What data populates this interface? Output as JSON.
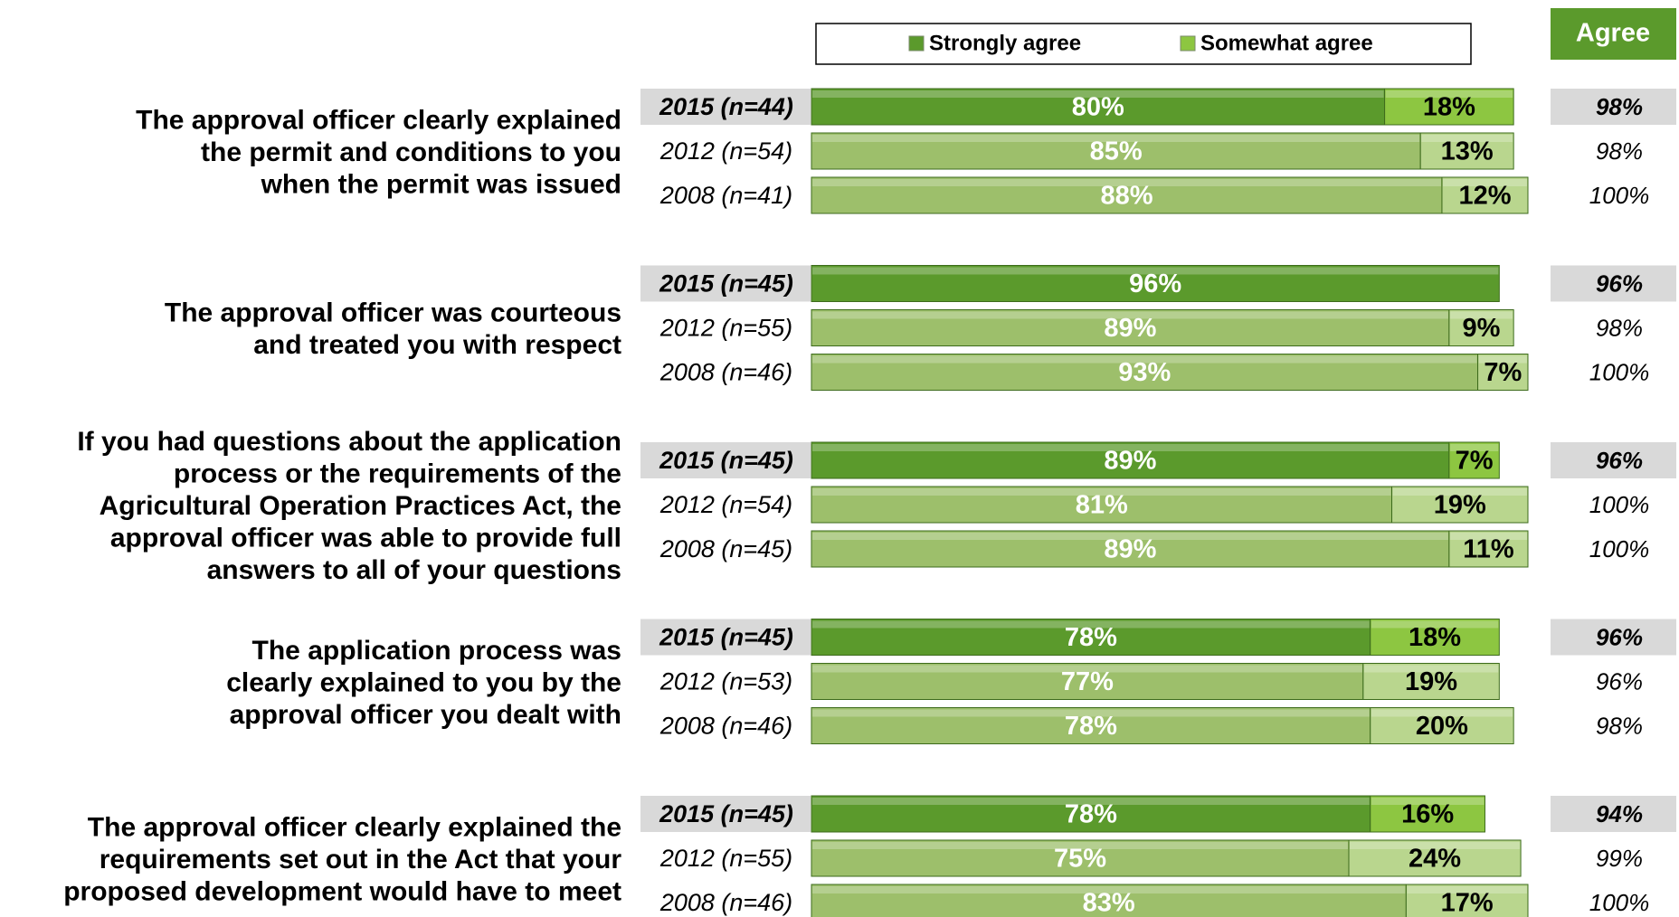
{
  "chart_data": {
    "type": "bar",
    "orientation": "horizontal",
    "stacked": true,
    "xlim": [
      0,
      100
    ],
    "total_header": "Agree",
    "series": [
      {
        "name": "Strongly agree",
        "color": "#5b9a2c",
        "past_color": "#9dbf6b"
      },
      {
        "name": "Somewhat agree",
        "color": "#8dc641",
        "past_color": "#b9d68e"
      }
    ],
    "groups": [
      {
        "label": [
          "The approval officer clearly explained",
          "the permit and conditions to you",
          "when the permit was issued"
        ],
        "categories": [
          "2015 (n=44)",
          "2012 (n=54)",
          "2008 (n=41)"
        ],
        "values": [
          [
            80,
            18
          ],
          [
            85,
            13
          ],
          [
            88,
            12
          ]
        ],
        "value_labels": [
          [
            "80%",
            "18%"
          ],
          [
            "85%",
            "13%"
          ],
          [
            "88%",
            "12%"
          ]
        ],
        "totals": [
          98,
          98,
          100
        ],
        "total_labels": [
          "98%",
          "98%",
          "100%"
        ]
      },
      {
        "label": [
          "The approval officer was courteous",
          "and treated you with respect"
        ],
        "categories": [
          "2015 (n=45)",
          "2012 (n=55)",
          "2008 (n=46)"
        ],
        "values": [
          [
            96,
            null
          ],
          [
            89,
            9
          ],
          [
            93,
            7
          ]
        ],
        "value_labels": [
          [
            "96%",
            null
          ],
          [
            "89%",
            "9%"
          ],
          [
            "93%",
            "7%"
          ]
        ],
        "totals": [
          96,
          98,
          100
        ],
        "total_labels": [
          "96%",
          "98%",
          "100%"
        ]
      },
      {
        "label": [
          "If you had questions about the application",
          "process or the requirements of the",
          "Agricultural Operation Practices Act, the",
          "approval officer was able to provide full",
          "answers to all of your questions"
        ],
        "categories": [
          "2015 (n=45)",
          "2012 (n=54)",
          "2008 (n=45)"
        ],
        "values": [
          [
            89,
            7
          ],
          [
            81,
            19
          ],
          [
            89,
            11
          ]
        ],
        "value_labels": [
          [
            "89%",
            "7%"
          ],
          [
            "81%",
            "19%"
          ],
          [
            "89%",
            "11%"
          ]
        ],
        "totals": [
          96,
          100,
          100
        ],
        "total_labels": [
          "96%",
          "100%",
          "100%"
        ]
      },
      {
        "label": [
          "The application process was",
          "clearly explained to you by the",
          "approval officer you dealt with"
        ],
        "categories": [
          "2015 (n=45)",
          "2012 (n=53)",
          "2008 (n=46)"
        ],
        "values": [
          [
            78,
            18
          ],
          [
            77,
            19
          ],
          [
            78,
            20
          ]
        ],
        "value_labels": [
          [
            "78%",
            "18%"
          ],
          [
            "77%",
            "19%"
          ],
          [
            "78%",
            "20%"
          ]
        ],
        "totals": [
          96,
          96,
          98
        ],
        "total_labels": [
          "96%",
          "96%",
          "98%"
        ]
      },
      {
        "label": [
          "The approval officer clearly explained the",
          "requirements set out in the Act that your",
          "proposed development would have to meet"
        ],
        "categories": [
          "2015 (n=45)",
          "2012 (n=55)",
          "2008 (n=46)"
        ],
        "values": [
          [
            78,
            16
          ],
          [
            75,
            24
          ],
          [
            83,
            17
          ]
        ],
        "value_labels": [
          [
            "78%",
            "16%"
          ],
          [
            "75%",
            "24%"
          ],
          [
            "83%",
            "17%"
          ]
        ],
        "totals": [
          94,
          99,
          100
        ],
        "total_labels": [
          "94%",
          "99%",
          "100%"
        ]
      }
    ]
  }
}
